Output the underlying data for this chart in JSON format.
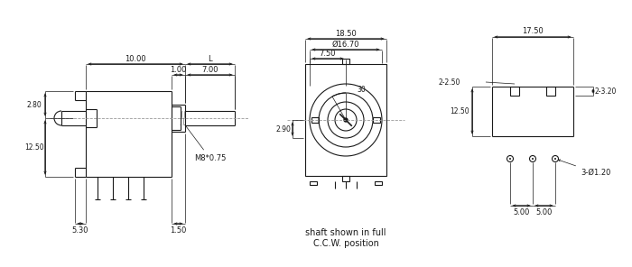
{
  "bg_color": "#ffffff",
  "line_color": "#1a1a1a",
  "dim_color": "#1a1a1a",
  "text_color": "#1a1a1a",
  "dashed_color": "#999999",
  "figsize": [
    7.0,
    2.96
  ],
  "dpi": 100,
  "annotations": {
    "view1": {
      "dim_10": "10.00",
      "dim_L": "L",
      "dim_1": "1.00",
      "dim_7": "7.00",
      "dim_280": "2.80",
      "dim_1250": "12.50",
      "dim_530": "5.30",
      "dim_150": "1.50",
      "dim_M8": "M8*0.75"
    },
    "view2": {
      "dim_1850": "18.50",
      "dim_phi1670": "Ø16.70",
      "dim_750": "7.50",
      "dim_30": "30",
      "dim_290": "2.90",
      "note1": "shaft shown in full",
      "note2": "C.C.W. position"
    },
    "view3": {
      "dim_1750": "17.50",
      "dim_2250": "2-2.50",
      "dim_2320": "2-3.20",
      "dim_1250": "12.50",
      "dim_phi120": "3-Ø1.20",
      "dim_500a": "5.00",
      "dim_500b": "5.00"
    }
  }
}
